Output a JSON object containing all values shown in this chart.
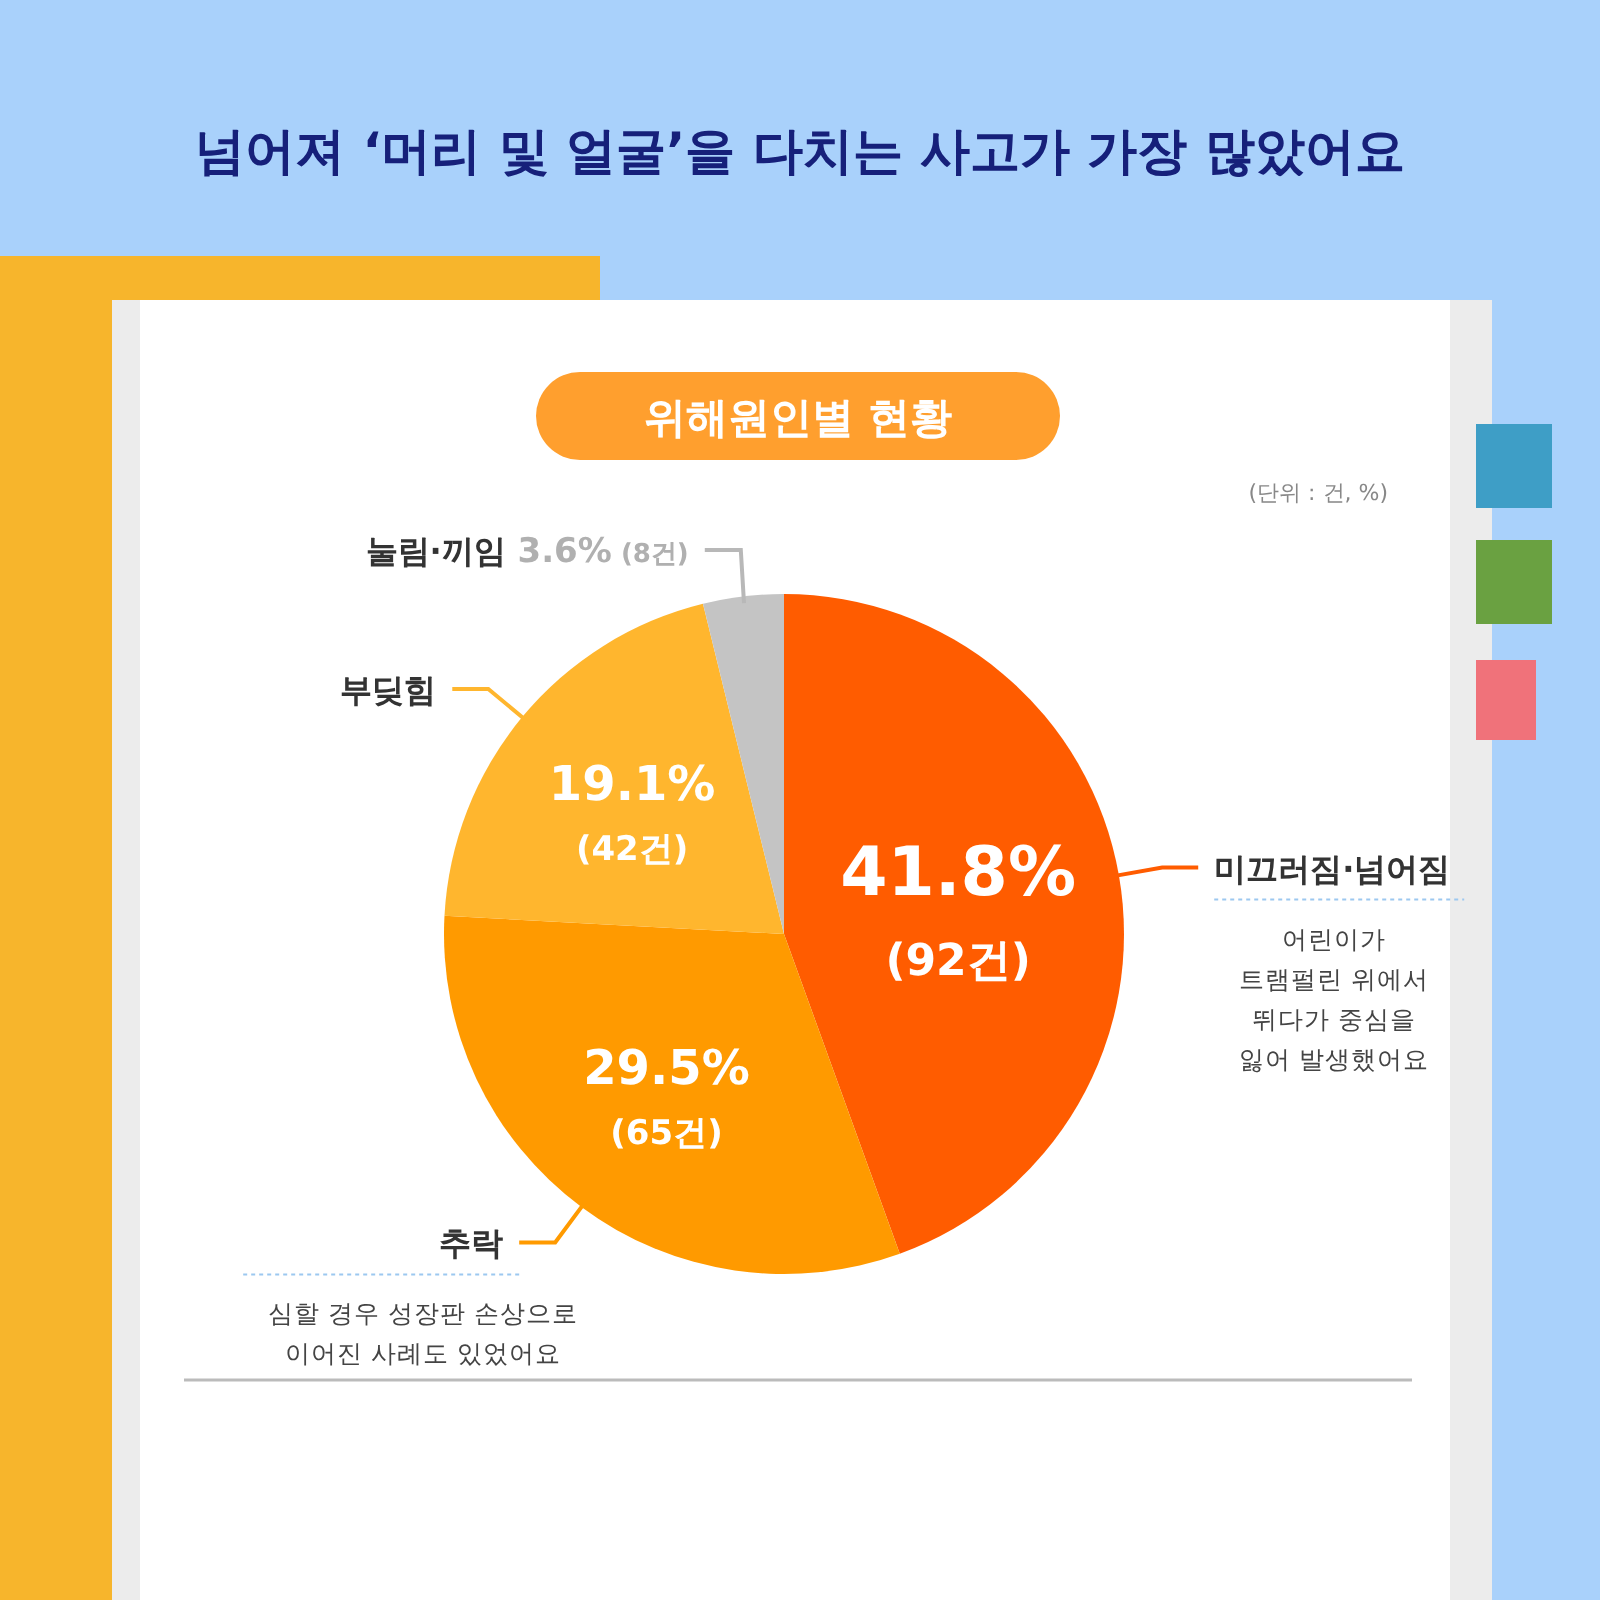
{
  "chart_data": {
    "type": "pie",
    "title": "넘어져 ‘머리 및 얼굴’을 다치는 사고가 가장 많았어요",
    "subtitle": "위해원인별 현황",
    "categories": [
      "미끄러짐·넘어짐",
      "추락",
      "부딪힘",
      "눌림·끼임"
    ],
    "values": [
      41.8,
      29.5,
      19.1,
      3.6
    ],
    "colors": [
      "#ff5c00",
      "#ff9a00",
      "#ffb62e",
      "#c4c4c4"
    ],
    "value_labels": [
      "41.8% (92건)",
      "29.5% (65건)",
      "19.1% (42건)",
      "3.6% (8건)"
    ],
    "annotations": [
      "(단위 : 건, %)",
      "어린이가 트램펄린 위에서 뛰다가 중심을 잃어 발생했어요",
      "심할 경우 성장판 손상으로 이어진 사례도 있었어요"
    ]
  }
}
